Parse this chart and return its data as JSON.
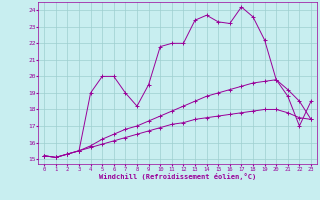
{
  "xlabel": "Windchill (Refroidissement éolien,°C)",
  "xlim": [
    -0.5,
    23.5
  ],
  "ylim": [
    14.7,
    24.5
  ],
  "yticks": [
    15,
    16,
    17,
    18,
    19,
    20,
    21,
    22,
    23,
    24
  ],
  "xticks": [
    0,
    1,
    2,
    3,
    4,
    5,
    6,
    7,
    8,
    9,
    10,
    11,
    12,
    13,
    14,
    15,
    16,
    17,
    18,
    19,
    20,
    21,
    22,
    23
  ],
  "bg_color": "#c8eef0",
  "line_color": "#990099",
  "grid_color": "#9ecfcf",
  "series": [
    {
      "x": [
        0,
        1,
        2,
        3,
        4,
        5,
        6,
        7,
        8,
        9,
        10,
        11,
        12,
        13,
        14,
        15,
        16,
        17,
        18,
        19,
        20,
        21,
        22,
        23
      ],
      "y": [
        15.2,
        15.1,
        15.3,
        15.5,
        15.7,
        15.9,
        16.1,
        16.3,
        16.5,
        16.7,
        16.9,
        17.1,
        17.2,
        17.4,
        17.5,
        17.6,
        17.7,
        17.8,
        17.9,
        18.0,
        18.0,
        17.8,
        17.5,
        17.4
      ]
    },
    {
      "x": [
        0,
        1,
        2,
        3,
        4,
        5,
        6,
        7,
        8,
        9,
        10,
        11,
        12,
        13,
        14,
        15,
        16,
        17,
        18,
        19,
        20,
        21,
        22,
        23
      ],
      "y": [
        15.2,
        15.1,
        15.3,
        15.5,
        15.8,
        16.2,
        16.5,
        16.8,
        17.0,
        17.3,
        17.6,
        17.9,
        18.2,
        18.5,
        18.8,
        19.0,
        19.2,
        19.4,
        19.6,
        19.7,
        19.8,
        19.2,
        18.5,
        17.4
      ]
    },
    {
      "x": [
        0,
        1,
        2,
        3,
        4,
        5,
        6,
        7,
        8,
        9,
        10,
        11,
        12,
        13,
        14,
        15,
        16,
        17,
        18,
        19,
        20,
        21,
        22,
        23
      ],
      "y": [
        15.2,
        15.1,
        15.3,
        15.5,
        19.0,
        20.0,
        20.0,
        19.0,
        18.2,
        19.5,
        21.8,
        22.0,
        22.0,
        23.4,
        23.7,
        23.3,
        23.2,
        24.2,
        23.6,
        22.2,
        19.8,
        18.8,
        17.0,
        18.5
      ]
    }
  ]
}
